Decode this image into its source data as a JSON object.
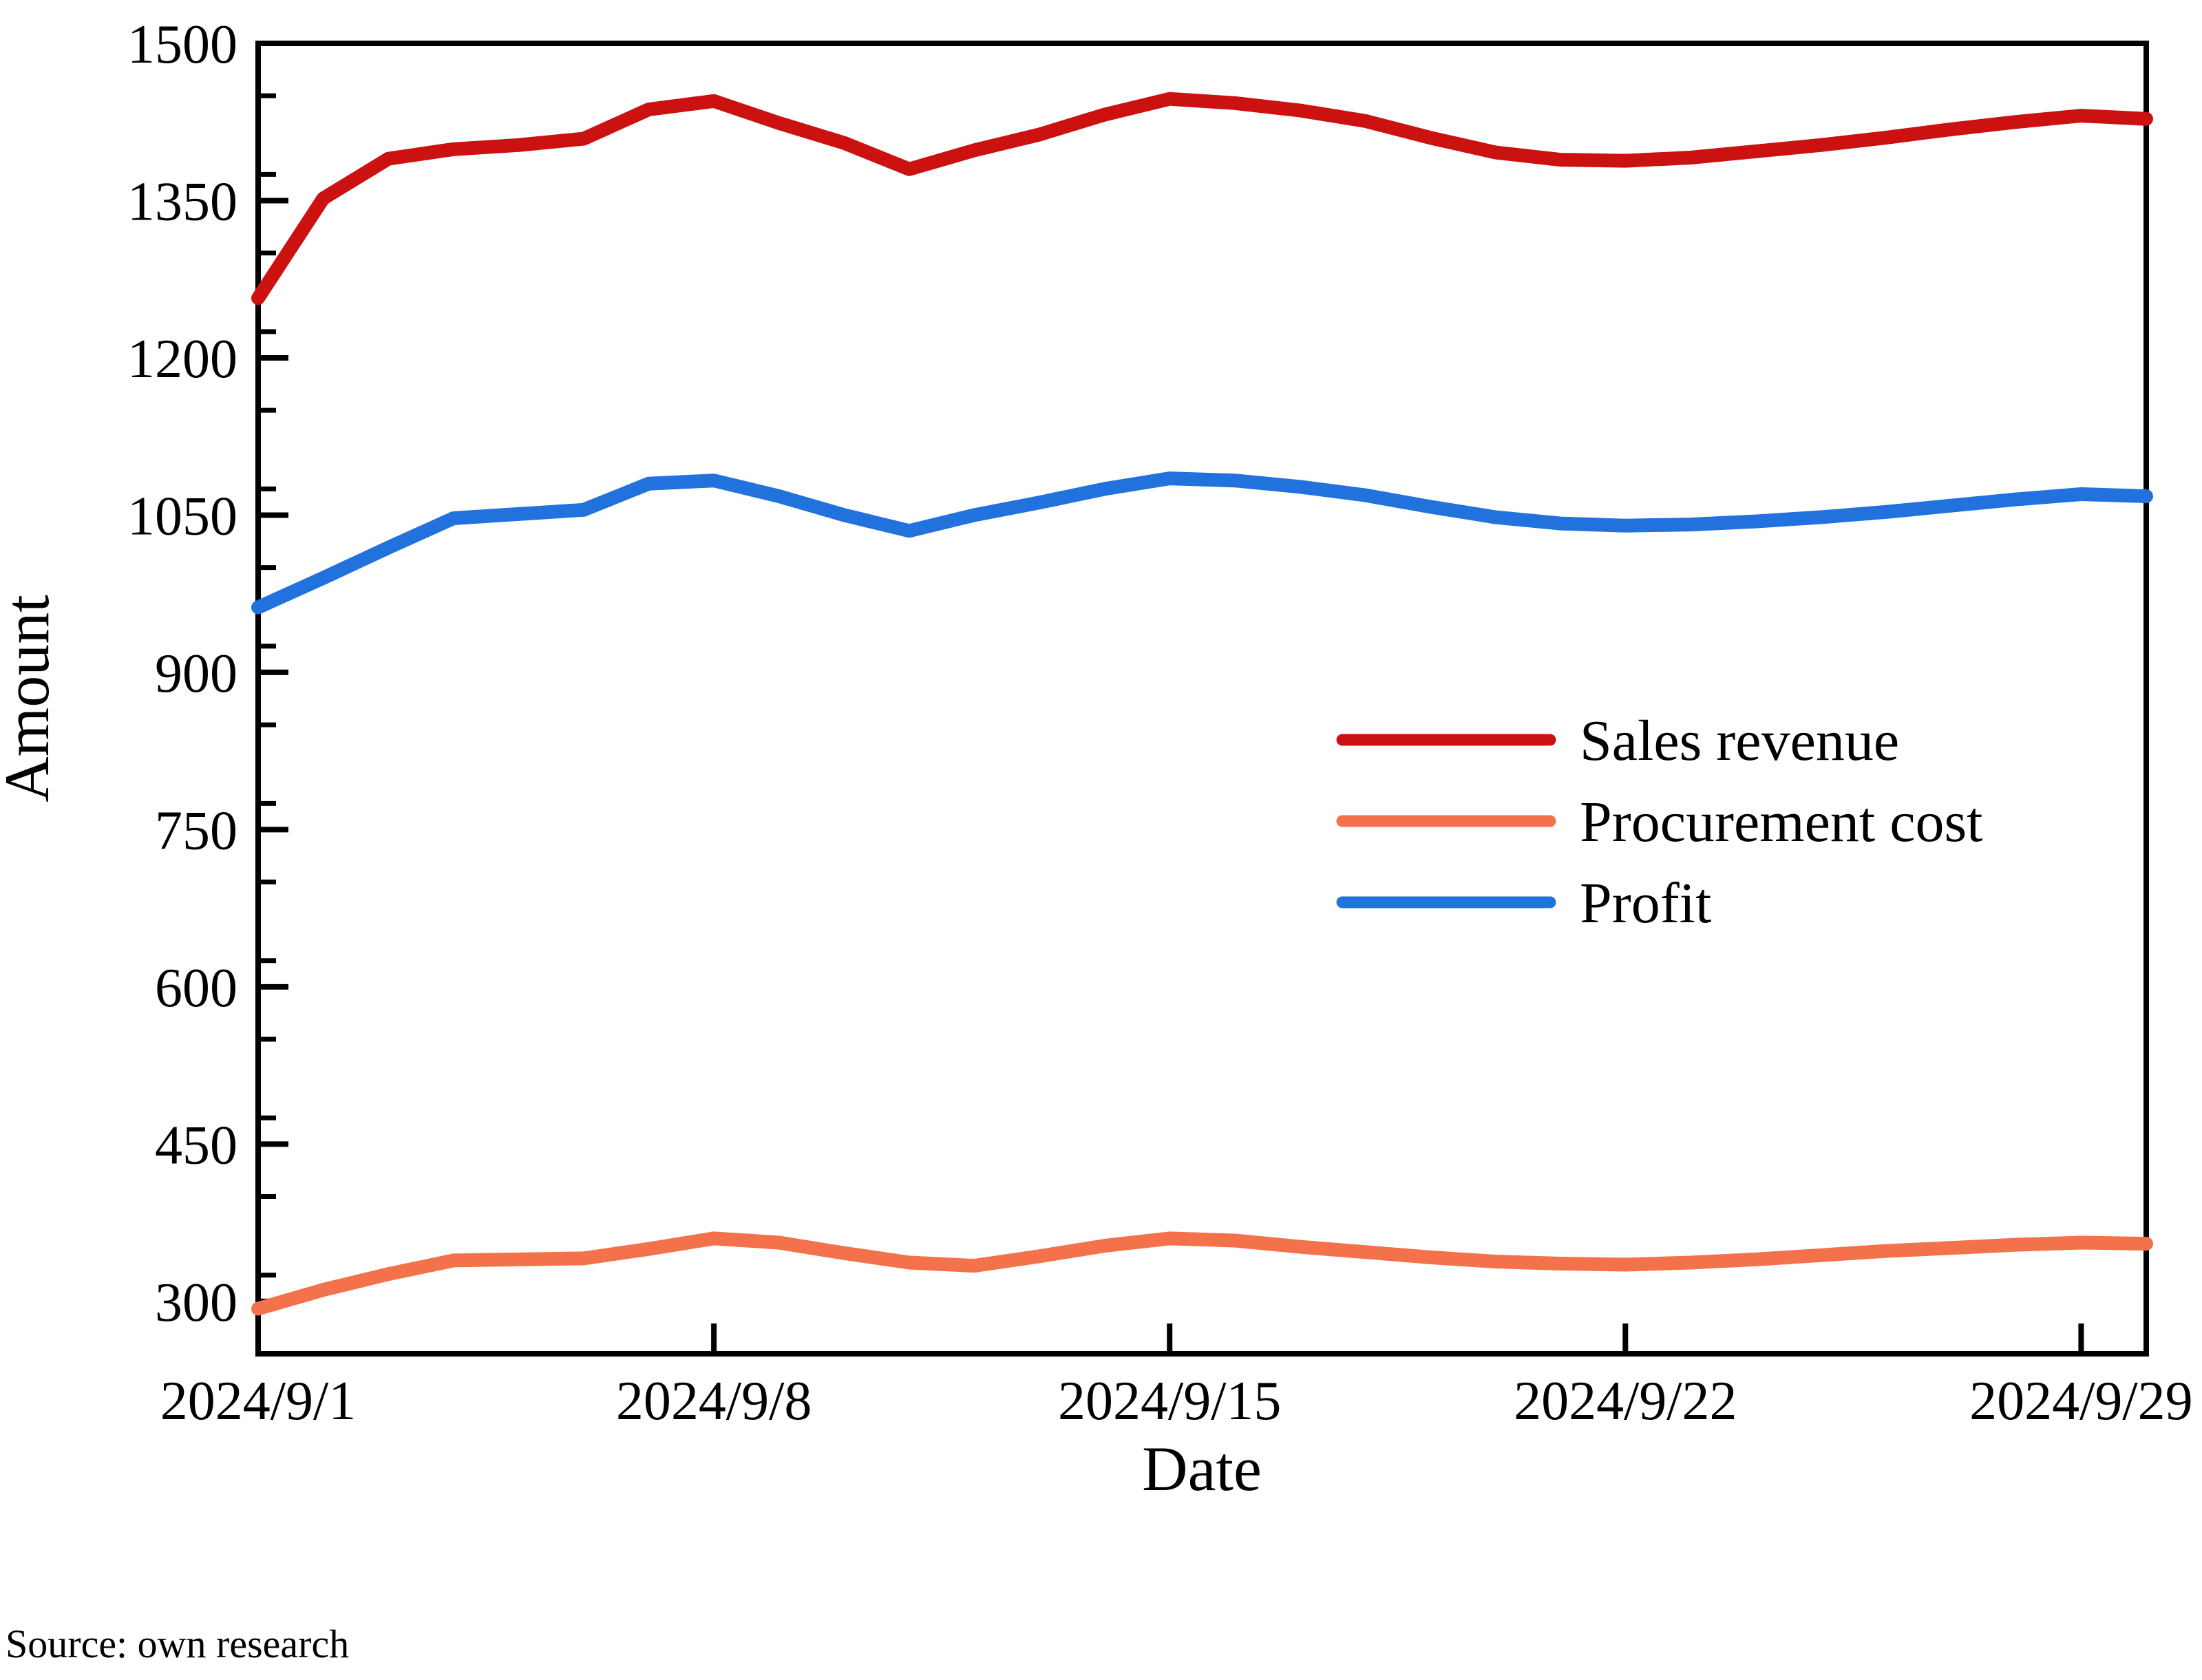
{
  "source_note": "Source: own research",
  "chart_data": {
    "type": "line",
    "title": "",
    "xlabel": "Date",
    "ylabel": "Amount",
    "x": [
      "2024/9/1",
      "2024/9/2",
      "2024/9/3",
      "2024/9/4",
      "2024/9/5",
      "2024/9/6",
      "2024/9/7",
      "2024/9/8",
      "2024/9/9",
      "2024/9/10",
      "2024/9/11",
      "2024/9/12",
      "2024/9/13",
      "2024/9/14",
      "2024/9/15",
      "2024/9/16",
      "2024/9/17",
      "2024/9/18",
      "2024/9/19",
      "2024/9/20",
      "2024/9/21",
      "2024/9/22",
      "2024/9/23",
      "2024/9/24",
      "2024/9/25",
      "2024/9/26",
      "2024/9/27",
      "2024/9/28",
      "2024/9/29",
      "2024/9/30"
    ],
    "series": [
      {
        "name": "Sales revenue",
        "color": "#CC1111",
        "values": [
          1257,
          1352,
          1390,
          1399,
          1403,
          1409,
          1437,
          1445,
          1424,
          1405,
          1380,
          1398,
          1413,
          1432,
          1447,
          1443,
          1436,
          1426,
          1410,
          1396,
          1389,
          1388,
          1391,
          1397,
          1403,
          1410,
          1418,
          1425,
          1431,
          1428
        ]
      },
      {
        "name": "Procurement cost",
        "color": "#F3724B",
        "values": [
          293,
          311,
          326,
          339,
          340,
          341,
          350,
          360,
          356,
          346,
          337,
          334,
          343,
          353,
          360,
          358,
          352,
          347,
          342,
          338,
          336,
          335,
          337,
          340,
          344,
          348,
          351,
          354,
          356,
          355
        ]
      },
      {
        "name": "Profit",
        "color": "#2272DE",
        "values": [
          962,
          990,
          1019,
          1047,
          1051,
          1055,
          1080,
          1083,
          1068,
          1050,
          1035,
          1050,
          1062,
          1075,
          1085,
          1083,
          1077,
          1069,
          1058,
          1048,
          1042,
          1040,
          1041,
          1044,
          1048,
          1053,
          1059,
          1065,
          1070,
          1068
        ]
      }
    ],
    "ylim": [
      250,
      1500
    ],
    "yticks": [
      300,
      450,
      600,
      750,
      900,
      1050,
      1200,
      1350,
      1500
    ],
    "y_minor_step": 75,
    "xtick_labels": [
      "2024/9/1",
      "2024/9/8",
      "2024/9/15",
      "2024/9/22",
      "2024/9/29"
    ],
    "xtick_day_index": [
      0,
      7,
      14,
      21,
      28
    ],
    "legend_position": "center-right",
    "grid": false
  }
}
